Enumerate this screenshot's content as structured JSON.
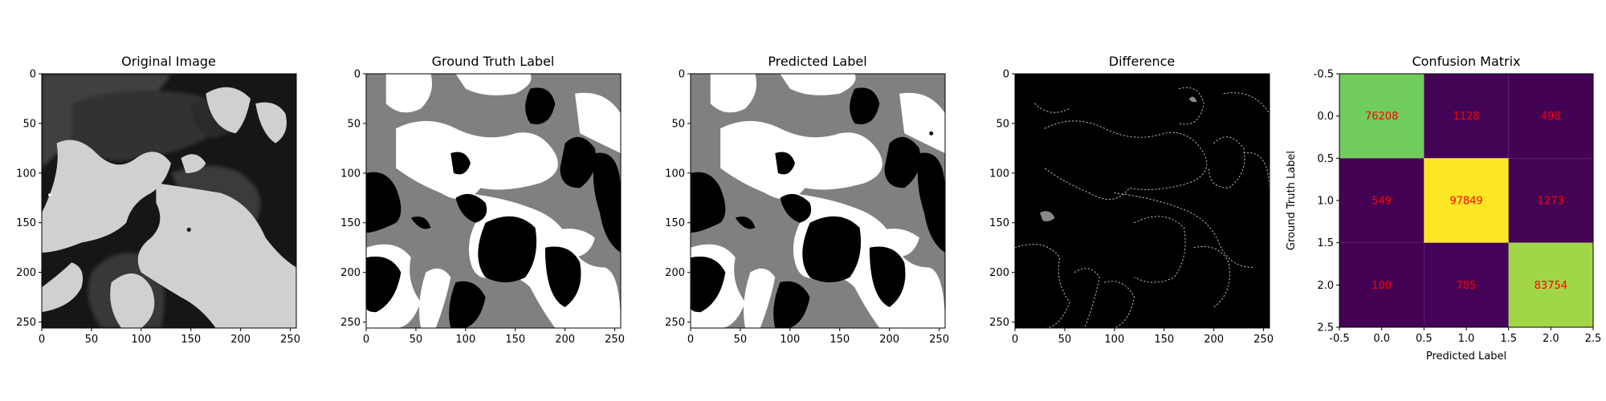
{
  "figure": {
    "panels": [
      {
        "title": "Original Image",
        "kind": "grayscale-image"
      },
      {
        "title": "Ground Truth Label",
        "kind": "label-image"
      },
      {
        "title": "Predicted Label",
        "kind": "label-image"
      },
      {
        "title": "Difference",
        "kind": "difference-image"
      },
      {
        "title": "Confusion Matrix",
        "kind": "heatmap"
      }
    ],
    "image_axes": {
      "x_ticks": [
        "0",
        "50",
        "100",
        "150",
        "200",
        "250"
      ],
      "y_ticks": [
        "0",
        "50",
        "100",
        "150",
        "200",
        "250"
      ]
    },
    "colors": {
      "cm_low": "#440154",
      "cm_mid": "#6ccd5a",
      "cm_high_a": "#fde725",
      "cm_high_b": "#a0da39",
      "cm_text": "#ff0000",
      "label_0": "#000000",
      "label_1": "#808080",
      "label_2": "#ffffff"
    }
  },
  "chart_data": {
    "type": "heatmap",
    "title": "Confusion Matrix",
    "xlabel": "Predicted Label",
    "ylabel": "Ground Truth Label",
    "x_ticks": [
      "-0.5",
      "0.0",
      "0.5",
      "1.0",
      "1.5",
      "2.0",
      "2.5"
    ],
    "y_ticks": [
      "-0.5",
      "0.0",
      "0.5",
      "1.0",
      "1.5",
      "2.0",
      "2.5"
    ],
    "xlim": [
      -0.5,
      2.5
    ],
    "ylim": [
      2.5,
      -0.5
    ],
    "colormap": "viridis",
    "matrix": [
      [
        76208,
        1128,
        498
      ],
      [
        549,
        97849,
        1273
      ],
      [
        100,
        785,
        83754
      ]
    ],
    "matrix_labels": [
      [
        "76208",
        "1128",
        "498"
      ],
      [
        "549",
        "97849",
        "1273"
      ],
      [
        "100",
        "785",
        "83754"
      ]
    ]
  }
}
